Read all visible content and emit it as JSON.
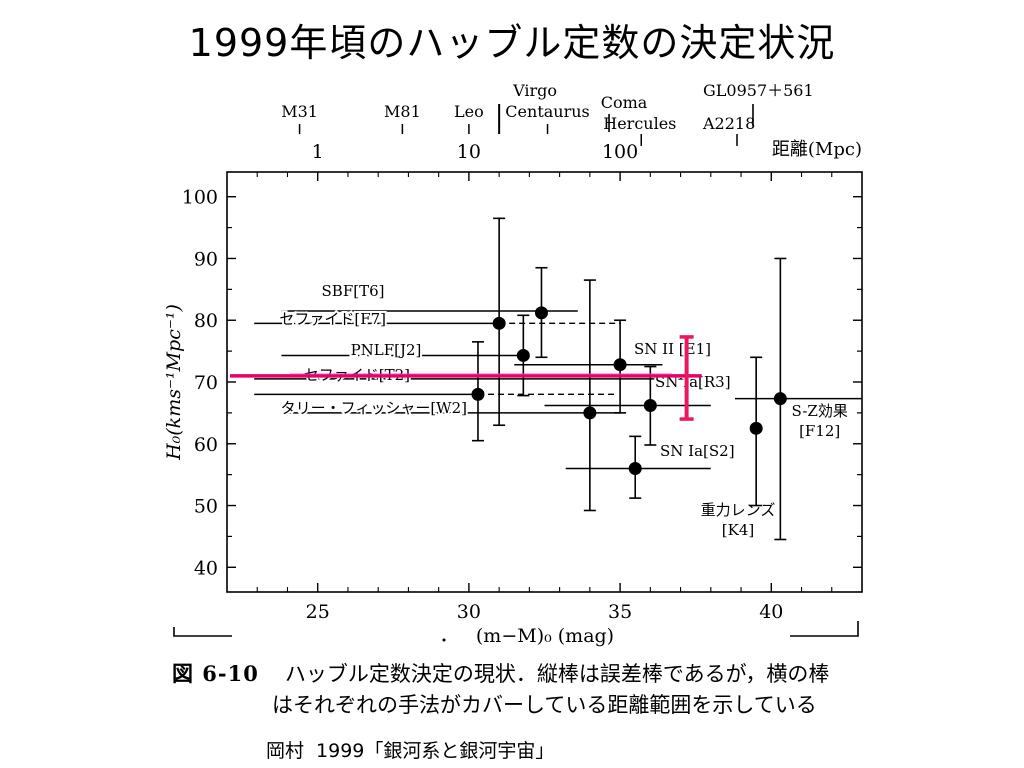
{
  "slide": {
    "title": "1999年頃のハッブル定数の決定状況",
    "caption_number": "図 6-10",
    "caption_line1": "ハッブル定数決定の現状．縦棒は誤差棒であるが，横の棒",
    "caption_line2": "はそれぞれの手法がカバーしている距離範囲を示している",
    "credit_author": "岡村",
    "credit_year_title": "1999「銀河系と銀河宇宙」"
  },
  "colors": {
    "ink": "#000000",
    "highlight_line": "#e8006a",
    "highlight_bar": "#ee1560",
    "pink": "#ff3ad0"
  },
  "chart_data": {
    "type": "scatter",
    "title": "",
    "xlabel": "(m−M)₀ (mag)",
    "ylabel": "H₀(kms⁻¹Mpc⁻¹)",
    "xlim": [
      22,
      43
    ],
    "ylim": [
      36,
      104
    ],
    "x_ticks": [
      25,
      30,
      35,
      40
    ],
    "y_ticks": [
      40,
      50,
      60,
      70,
      80,
      90,
      100
    ],
    "top_axis": {
      "label": "距離(Mpc)",
      "ticks": [
        {
          "value": 1,
          "label": "1",
          "modulus": 25
        },
        {
          "value": 10,
          "label": "10",
          "modulus": 30
        },
        {
          "value": 100,
          "label": "100",
          "modulus": 35
        }
      ],
      "galaxies": [
        {
          "name": "M31",
          "modulus": 24.4,
          "row": 2
        },
        {
          "name": "M81",
          "modulus": 27.8,
          "row": 2
        },
        {
          "name": "Leo",
          "modulus": 30.0,
          "row": 2
        },
        {
          "name": "Virgo",
          "modulus": 31.0,
          "row": 0
        },
        {
          "name": "Centaurus",
          "modulus": 32.6,
          "row": 2
        },
        {
          "name": "Coma",
          "modulus": 34.8,
          "row": 1
        },
        {
          "name": "Hercules",
          "modulus": 35.7,
          "row": 3
        },
        {
          "name": "GL0957＋561",
          "modulus": 39.5,
          "row": 0
        },
        {
          "name": "A2218",
          "modulus": 39.6,
          "row": 3
        }
      ]
    },
    "points": [
      {
        "x": 30.3,
        "y": 68,
        "ylow": 60.5,
        "yhigh": 76.5
      },
      {
        "x": 31.0,
        "y": 79.5,
        "ylow": 63,
        "yhigh": 96.5
      },
      {
        "x": 31.8,
        "y": 74.3,
        "ylow": 67.8,
        "yhigh": 80.8
      },
      {
        "x": 32.4,
        "y": 81.2,
        "ylow": 74,
        "yhigh": 88.5
      },
      {
        "x": 34.0,
        "y": 65,
        "ylow": 49.2,
        "yhigh": 86.5
      },
      {
        "x": 35.0,
        "y": 72.8,
        "ylow": 65,
        "yhigh": 80
      },
      {
        "x": 35.5,
        "y": 56,
        "ylow": 51.2,
        "yhigh": 61.2
      },
      {
        "x": 36.0,
        "y": 66.2,
        "ylow": 59.8,
        "yhigh": 72.5
      },
      {
        "x": 39.5,
        "y": 62.5,
        "ylow": 50,
        "yhigh": 74
      },
      {
        "x": 40.3,
        "y": 67.3,
        "ylow": 44.5,
        "yhigh": 90
      }
    ],
    "ranges": [
      {
        "label": "SBF[T6]",
        "y": 81.5,
        "x1": 23.8,
        "x2": 33.6,
        "style": "solid"
      },
      {
        "label": "セファイド[F7]",
        "y": 79.5,
        "x1": 22.9,
        "x2": 31.0,
        "style": "solid",
        "dashed_to": 35.0
      },
      {
        "label": "PNLF[J2]",
        "y": 74.3,
        "x1": 23.8,
        "x2": 31.8,
        "style": "solid"
      },
      {
        "label": "SN II [E1]",
        "y": 72.8,
        "x1": 31.5,
        "x2": 36.4,
        "style": "solid"
      },
      {
        "label": "セファイド[T2]",
        "y": 70.5,
        "x1": 22.9,
        "x2": 37.5,
        "style": "solid"
      },
      {
        "label": "SN Ia[R3]",
        "y": 66.2,
        "x1": 32.5,
        "x2": 38.0,
        "style": "solid"
      },
      {
        "label": "",
        "y": 68,
        "x1": 22.9,
        "x2": 30.3,
        "style": "solid",
        "dashed_to": 34.9
      },
      {
        "label": "タリー・フィッシャー[W2]",
        "y": 65,
        "x1": 23.8,
        "x2": 35.0,
        "style": "solid"
      },
      {
        "label": "SN Ia[S2]",
        "y": 56,
        "x1": 33.2,
        "x2": 38.0,
        "style": "solid"
      },
      {
        "label": "",
        "y": 67.3,
        "x1": 38.8,
        "x2": 43.0,
        "style": "solid"
      }
    ],
    "annotations": [
      {
        "text": "S-Z効果",
        "text2": "[F12]",
        "x": 41.6,
        "y": 64.5
      },
      {
        "text": "重力レンズ",
        "text2": "[K4]",
        "x": 38.9,
        "y": 48.5
      }
    ],
    "highlight": {
      "y": 71,
      "x1": 22.1,
      "x2": 37.7,
      "bar_x": 37.2,
      "bar_low": 64,
      "bar_high": 77.3
    }
  }
}
